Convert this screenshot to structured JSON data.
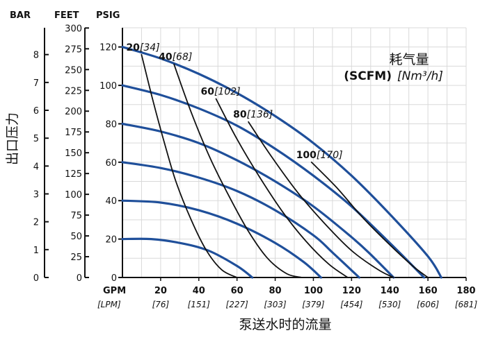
{
  "chart_data": {
    "type": "line",
    "title": "",
    "xlabel": "泵送水时的流量",
    "x_unit_primary": "GPM",
    "x_unit_secondary": "[LPM]",
    "xlim": [
      0,
      180
    ],
    "xticks": [
      20,
      40,
      60,
      80,
      100,
      120,
      140,
      160,
      180
    ],
    "xticks_lpm": [
      "[76]",
      "[151]",
      "[227]",
      "[303]",
      "[379]",
      "[454]",
      "[530]",
      "[606]",
      "[681]"
    ],
    "ylabel": "出口压力",
    "y_units": [
      "BAR",
      "FEET",
      "PSIG"
    ],
    "ylim": [
      0,
      130
    ],
    "psig_ticks": [
      "0",
      "20",
      "40",
      "60",
      "80",
      "100",
      "120"
    ],
    "feet_ticks": [
      "0",
      "25",
      "50",
      "75",
      "100",
      "125",
      "150",
      "175",
      "200",
      "225",
      "250",
      "275",
      "300"
    ],
    "bar_ticks": [
      "0",
      "1",
      "2",
      "3",
      "4",
      "5",
      "6",
      "7",
      "8"
    ],
    "grid": true,
    "legend_title": "耗气量",
    "legend_unit_bold": "(SCFM)",
    "legend_unit_italic": "[Nm³/h]",
    "pressure_series": [
      {
        "name": "",
        "points": [
          [
            0,
            120
          ],
          [
            20,
            114
          ],
          [
            40,
            106
          ],
          [
            60,
            96
          ],
          [
            80,
            84
          ],
          [
            100,
            70
          ],
          [
            120,
            53
          ],
          [
            140,
            33
          ],
          [
            160,
            11
          ],
          [
            167,
            0
          ]
        ]
      },
      {
        "name": "",
        "points": [
          [
            0,
            100
          ],
          [
            20,
            95
          ],
          [
            40,
            88
          ],
          [
            60,
            79
          ],
          [
            80,
            67
          ],
          [
            100,
            53
          ],
          [
            120,
            37
          ],
          [
            140,
            18
          ],
          [
            158,
            0
          ]
        ]
      },
      {
        "name": "",
        "points": [
          [
            0,
            80
          ],
          [
            20,
            76
          ],
          [
            40,
            70
          ],
          [
            60,
            61
          ],
          [
            80,
            50
          ],
          [
            100,
            37
          ],
          [
            120,
            21
          ],
          [
            130,
            12
          ],
          [
            142,
            0
          ]
        ]
      },
      {
        "name": "",
        "points": [
          [
            0,
            60
          ],
          [
            20,
            57
          ],
          [
            40,
            52
          ],
          [
            60,
            45
          ],
          [
            80,
            35
          ],
          [
            100,
            22
          ],
          [
            110,
            13
          ],
          [
            124,
            0
          ]
        ]
      },
      {
        "name": "",
        "points": [
          [
            0,
            40
          ],
          [
            20,
            39
          ],
          [
            40,
            35
          ],
          [
            60,
            28
          ],
          [
            80,
            18
          ],
          [
            95,
            8
          ],
          [
            104,
            0
          ]
        ]
      },
      {
        "name": "",
        "points": [
          [
            0,
            20
          ],
          [
            15,
            20
          ],
          [
            30,
            18
          ],
          [
            45,
            14
          ],
          [
            60,
            6
          ],
          [
            68,
            0
          ]
        ]
      }
    ],
    "air_series": [
      {
        "name": "20",
        "name_alt": "[34]",
        "points": [
          [
            10,
            116
          ],
          [
            16,
            92
          ],
          [
            22,
            70
          ],
          [
            28,
            50
          ],
          [
            36,
            30
          ],
          [
            44,
            14
          ],
          [
            52,
            4
          ],
          [
            60,
            0
          ]
        ]
      },
      {
        "name": "40",
        "name_alt": "[68]",
        "points": [
          [
            27,
            111
          ],
          [
            36,
            86
          ],
          [
            46,
            62
          ],
          [
            56,
            42
          ],
          [
            66,
            24
          ],
          [
            76,
            10
          ],
          [
            86,
            2
          ],
          [
            94,
            0
          ]
        ]
      },
      {
        "name": "60",
        "name_alt": "[102]",
        "points": [
          [
            49,
            93
          ],
          [
            60,
            72
          ],
          [
            72,
            52
          ],
          [
            84,
            34
          ],
          [
            96,
            19
          ],
          [
            108,
            7
          ],
          [
            118,
            0
          ]
        ]
      },
      {
        "name": "80",
        "name_alt": "[136]",
        "points": [
          [
            66,
            81
          ],
          [
            78,
            63
          ],
          [
            92,
            44
          ],
          [
            106,
            28
          ],
          [
            120,
            14
          ],
          [
            134,
            4
          ],
          [
            142,
            0
          ]
        ]
      },
      {
        "name": "100",
        "name_alt": "[170]",
        "points": [
          [
            99,
            60
          ],
          [
            112,
            47
          ],
          [
            126,
            31
          ],
          [
            140,
            17
          ],
          [
            152,
            6
          ],
          [
            160,
            0
          ]
        ]
      }
    ],
    "colors": {
      "pressure_curve": "#1f4f9a",
      "air_curve": "#111111",
      "grid": "#d9d9d9",
      "axis": "#111111"
    }
  }
}
